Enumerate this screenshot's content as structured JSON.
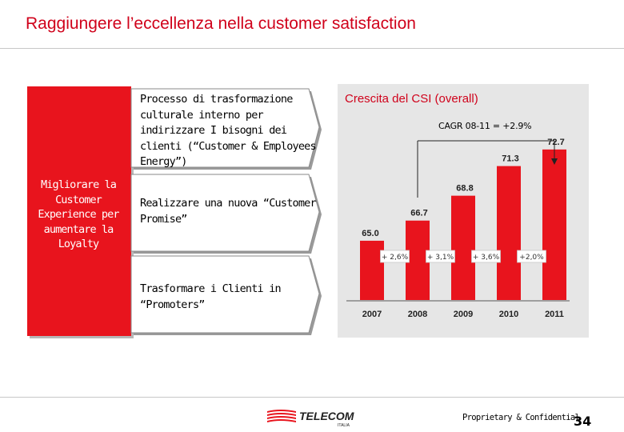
{
  "slide": {
    "title": "Raggiungere l’eccellenza nella customer satisfaction",
    "left_box": {
      "text": "Migliorare la Customer Experience per aumentare la Loyalty"
    },
    "steps": [
      {
        "text": "Processo di trasformazione culturale interno per indirizzare I bisogni dei clienti (“Customer & Employees Energy”)"
      },
      {
        "text": "Realizzare una nuova “Customer Promise”"
      },
      {
        "text": "Trasformare i Clienti in “Promoters”"
      }
    ]
  },
  "footer": {
    "confidential": "Proprietary & Confidential",
    "page_number": "34",
    "logo_text": "TELECOM",
    "logo_subtext": "ITALIA"
  },
  "colors": {
    "accent": "#e8141d",
    "title": "#d0021b",
    "panel": "#e6e6e6"
  },
  "chart_data": {
    "type": "bar",
    "title": "Crescita del CSI (overall)",
    "annotation": "CAGR 08-11 = +2.9%",
    "categories": [
      "2007",
      "2008",
      "2009",
      "2010",
      "2011"
    ],
    "values": [
      65.0,
      66.7,
      68.8,
      71.3,
      72.7
    ],
    "value_labels": [
      "65.0",
      "66.7",
      "68.8",
      "71.3",
      "72.7"
    ],
    "growth_labels": [
      "+ 2,6%",
      "+ 3,1%",
      "+ 3,6%",
      "+2,0%"
    ],
    "ylim": [
      60,
      73.5
    ],
    "xlabel": "",
    "ylabel": "",
    "grid": false
  }
}
